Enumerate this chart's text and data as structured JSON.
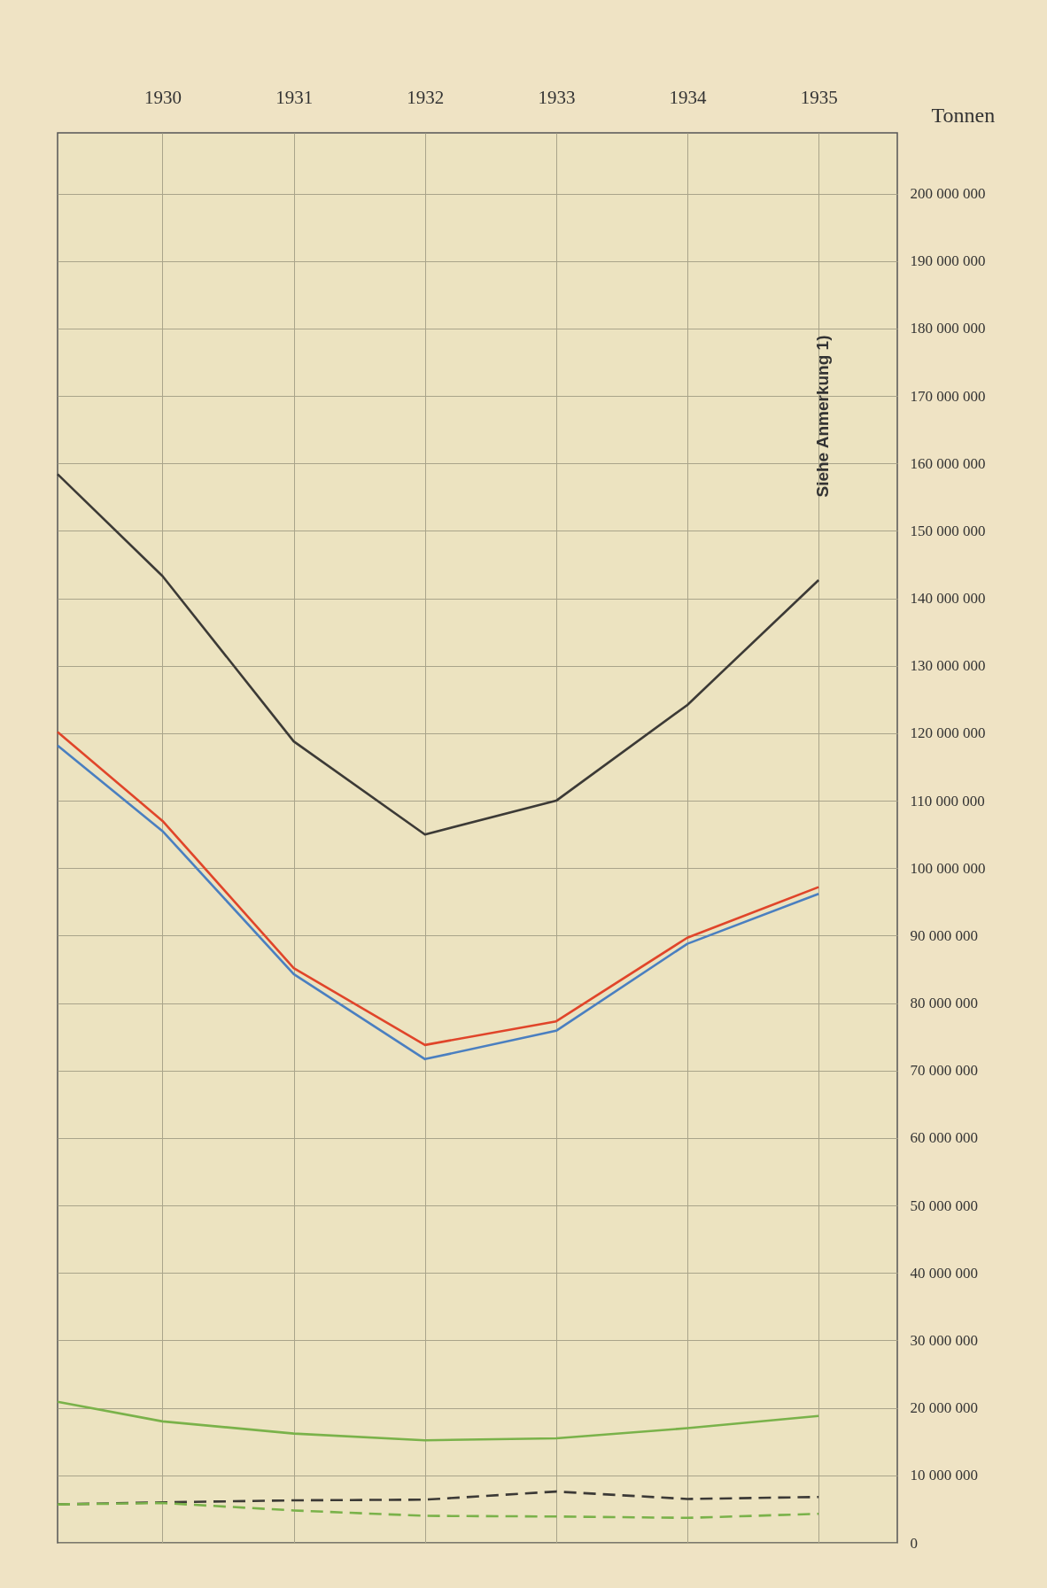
{
  "chart_data": {
    "type": "line",
    "ylabel": "Tonnen",
    "annotations": [
      "Siehe Anmerkung 1)"
    ],
    "xlim": [
      1929.2,
      1935.6
    ],
    "xticks": [
      1930,
      1931,
      1932,
      1933,
      1934,
      1935
    ],
    "ylim": [
      0,
      209000000
    ],
    "yticks": [
      {
        "value": 0,
        "label": "0"
      },
      {
        "value": 10000000,
        "label": "10 000 000"
      },
      {
        "value": 20000000,
        "label": "20 000 000"
      },
      {
        "value": 30000000,
        "label": "30 000 000"
      },
      {
        "value": 40000000,
        "label": "40 000 000"
      },
      {
        "value": 50000000,
        "label": "50 000 000"
      },
      {
        "value": 60000000,
        "label": "60 000 000"
      },
      {
        "value": 70000000,
        "label": "70 000 000"
      },
      {
        "value": 80000000,
        "label": "80 000 000"
      },
      {
        "value": 90000000,
        "label": "90 000 000"
      },
      {
        "value": 100000000,
        "label": "100 000 000"
      },
      {
        "value": 110000000,
        "label": "110 000 000"
      },
      {
        "value": 120000000,
        "label": "120 000 000"
      },
      {
        "value": 130000000,
        "label": "130 000 000"
      },
      {
        "value": 140000000,
        "label": "140 000 000"
      },
      {
        "value": 150000000,
        "label": "150 000 000"
      },
      {
        "value": 160000000,
        "label": "160 000 000"
      },
      {
        "value": 170000000,
        "label": "170 000 000"
      },
      {
        "value": 180000000,
        "label": "180 000 000"
      },
      {
        "value": 190000000,
        "label": "190 000 000"
      },
      {
        "value": 200000000,
        "label": "200 000 000"
      }
    ],
    "grid": true,
    "x": [
      1929.2,
      1930,
      1931,
      1932,
      1933,
      1934,
      1935
    ],
    "series": [
      {
        "color": "#3c3a36",
        "line_style": "solid",
        "values": [
          158400000,
          143300000,
          118800000,
          105000000,
          110000000,
          124200000,
          142700000
        ]
      },
      {
        "color": "#e0452a",
        "line_style": "solid",
        "values": [
          120200000,
          107000000,
          85200000,
          73800000,
          77300000,
          89700000,
          97200000
        ]
      },
      {
        "color": "#4a7fc0",
        "line_style": "solid",
        "values": [
          118200000,
          105500000,
          84300000,
          71700000,
          75900000,
          88800000,
          96200000
        ]
      },
      {
        "color": "#7ab24a",
        "line_style": "solid",
        "values": [
          20900000,
          18000000,
          16200000,
          15200000,
          15500000,
          17000000,
          18800000
        ]
      },
      {
        "color": "#3c3a36",
        "line_style": "dashed",
        "values": [
          5700000,
          6000000,
          6300000,
          6400000,
          7600000,
          6500000,
          6800000
        ]
      },
      {
        "color": "#7ab24a",
        "line_style": "dashed",
        "values": [
          5700000,
          5900000,
          4800000,
          4000000,
          3900000,
          3700000,
          4300000
        ]
      }
    ]
  }
}
